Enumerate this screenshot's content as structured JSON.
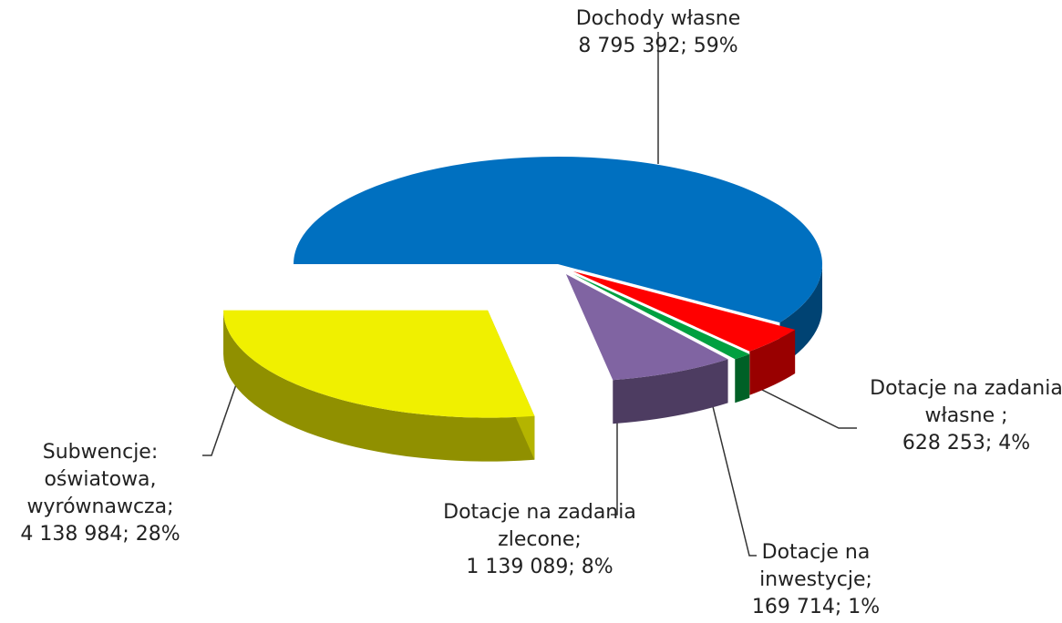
{
  "chart_data": {
    "type": "pie3d",
    "categories": [
      "Dochody własne",
      "Dotacje na zadania własne ;",
      "Dotacje na inwestycje;",
      "Dotacje na zadania zlecone;",
      "Subwencje: oświatowa, wyrównawcza;"
    ],
    "values": [
      8795392,
      628253,
      169714,
      1139089,
      4138984
    ],
    "value_labels": [
      "8 795 392; 59%",
      "628 253; 4%",
      "169 714; 1%",
      "1 139 089; 8%",
      "4 138 984; 28%"
    ],
    "colors": [
      "#0070c0",
      "#ff0000",
      "#00a040",
      "#8064a2",
      "#f0f000"
    ]
  }
}
